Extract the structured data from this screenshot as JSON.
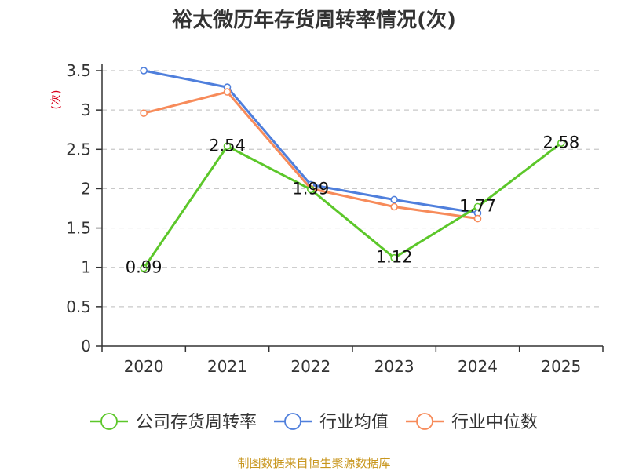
{
  "chart_data": {
    "type": "line",
    "title": "裕太微历年存货周转率情况(次)",
    "ylabel": "(次)",
    "xlabel": "",
    "categories": [
      "2020",
      "2021",
      "2022",
      "2023",
      "2024",
      "2025"
    ],
    "ylim": [
      0,
      3.5
    ],
    "yticks": [
      "0",
      "0.5",
      "1",
      "1.5",
      "2",
      "2.5",
      "3",
      "3.5"
    ],
    "grid": true,
    "legend_position": "bottom",
    "series": [
      {
        "name": "公司存货周转率",
        "color": "#5cc72a",
        "values": [
          0.99,
          2.54,
          1.99,
          1.12,
          1.77,
          2.58
        ],
        "labels": [
          "0.99",
          "2.54",
          "1.99",
          "1.12",
          "1.77",
          "2.58"
        ]
      },
      {
        "name": "行业均值",
        "color": "#4f7fdc",
        "values": [
          3.5,
          3.29,
          2.05,
          1.86,
          1.69,
          null
        ]
      },
      {
        "name": "行业中位数",
        "color": "#f78b5a",
        "values": [
          2.96,
          3.23,
          2.0,
          1.77,
          1.62,
          null
        ]
      }
    ],
    "source": "制图数据来自恒生聚源数据库"
  }
}
